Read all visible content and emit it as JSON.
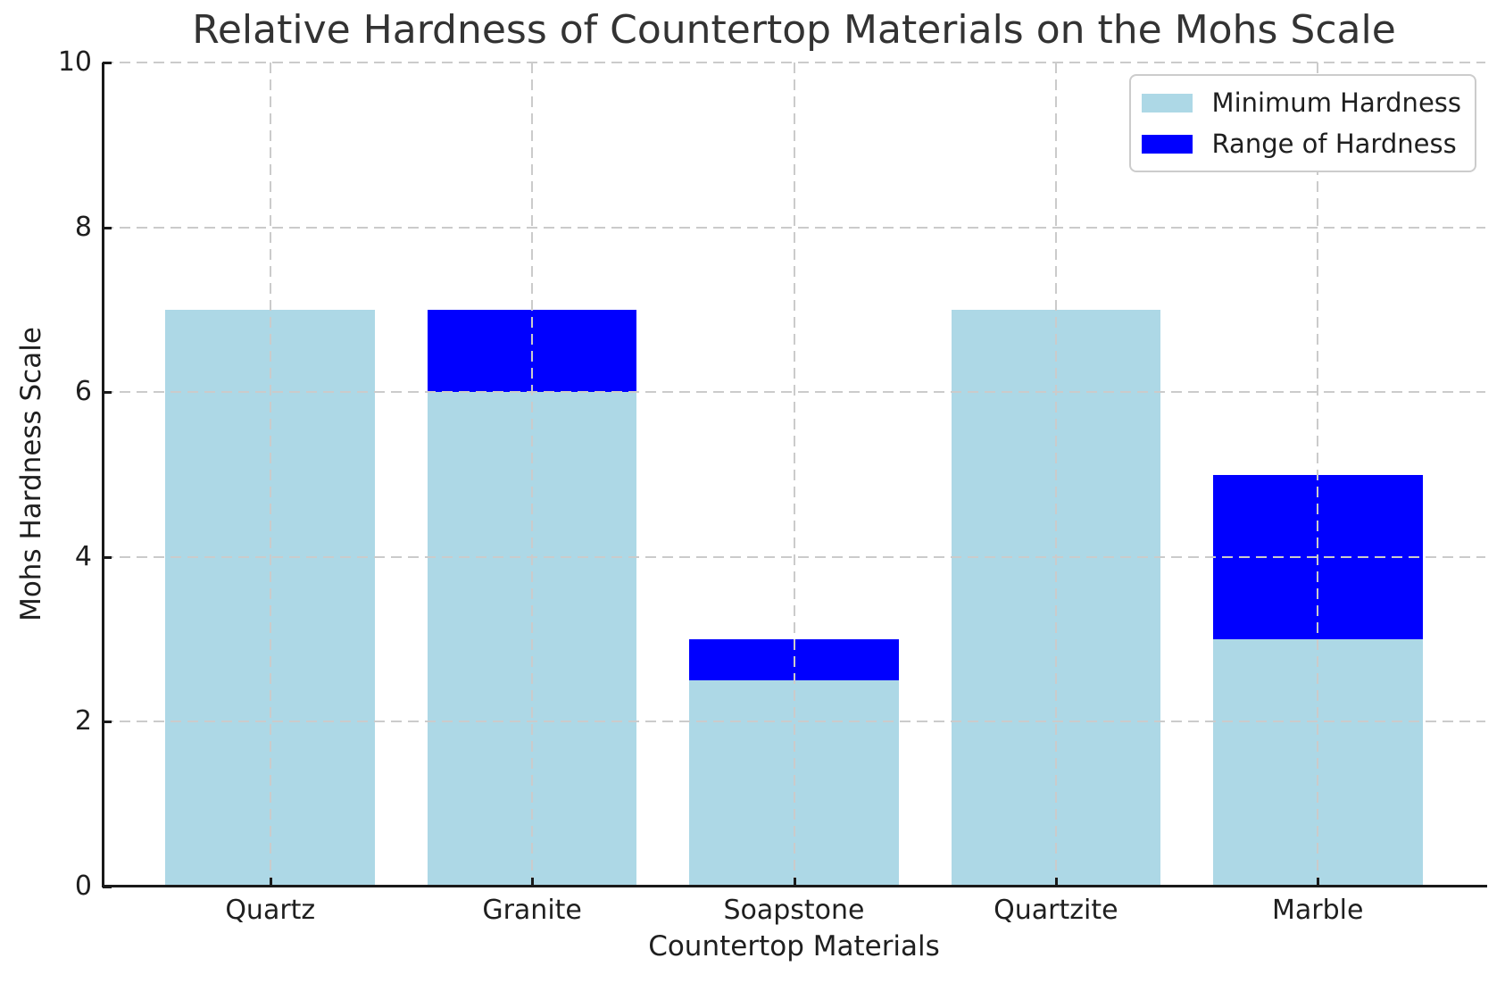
{
  "chart_data": {
    "type": "bar",
    "stacked": true,
    "title": "Relative Hardness of Countertop Materials on the Mohs Scale",
    "xlabel": "Countertop Materials",
    "ylabel": "Mohs Hardness Scale",
    "categories": [
      "Quartz",
      "Granite",
      "Soapstone",
      "Quartzite",
      "Marble"
    ],
    "series": [
      {
        "name": "Minimum Hardness",
        "color": "#ADD8E6",
        "values": [
          7,
          6,
          2.5,
          7,
          3
        ]
      },
      {
        "name": "Range of Hardness",
        "color": "#0000FF",
        "values": [
          0,
          1,
          0.5,
          0,
          2
        ]
      }
    ],
    "max_hardness": [
      7,
      7,
      3,
      7,
      5
    ],
    "ylim": [
      0,
      10
    ],
    "yticks": [
      0,
      2,
      4,
      6,
      8,
      10
    ],
    "grid": true,
    "grid_style": "dashed",
    "grid_above_bars": true,
    "legend_position": "upper right",
    "bar_width": 0.8,
    "colors": {
      "grid": "#cbcbcb",
      "spine": "#1a1a1a",
      "tick_text": "#1f1f1f",
      "title_text": "#333333",
      "background": "#ffffff"
    }
  }
}
